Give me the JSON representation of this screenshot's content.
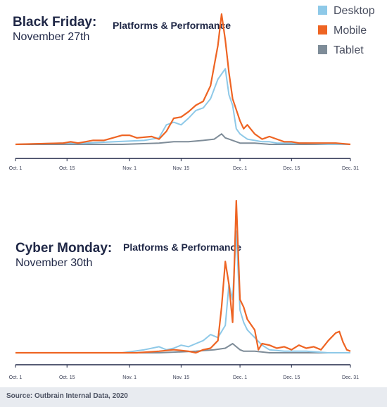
{
  "legend": [
    {
      "label": "Desktop",
      "color": "#8ec9e8"
    },
    {
      "label": "Mobile",
      "color": "#ee6423"
    },
    {
      "label": "Tablet",
      "color": "#7e8c98"
    }
  ],
  "source": "Source: Outbrain Internal Data, 2020",
  "chart_data": [
    {
      "type": "line",
      "title": "Black Friday:",
      "subtitle": "November 27th",
      "note": "Platforms & Performance",
      "x_tick_labels": [
        "Oct. 1",
        "Oct. 15",
        "Nov. 1",
        "Nov. 15",
        "Dec. 1",
        "Dec. 15",
        "Dec. 31"
      ],
      "x_tick_days": [
        1,
        15,
        32,
        46,
        62,
        76,
        92
      ],
      "xlim": [
        1,
        92
      ],
      "ylim": [
        0,
        100
      ],
      "series": [
        {
          "name": "Desktop",
          "color": "#8ec9e8",
          "x": [
            1,
            14,
            20,
            28,
            36,
            40,
            42,
            44,
            46,
            48,
            50,
            52,
            54,
            56,
            58,
            59,
            60,
            61,
            62,
            63,
            64,
            66,
            68,
            70,
            72,
            76,
            80,
            86,
            92
          ],
          "y": [
            0,
            1,
            1,
            2,
            3,
            5,
            15,
            17,
            15,
            20,
            26,
            28,
            35,
            50,
            58,
            38,
            30,
            12,
            8,
            6,
            4,
            3,
            2,
            2,
            1,
            1,
            1,
            0,
            0
          ]
        },
        {
          "name": "Mobile",
          "color": "#ee6423",
          "x": [
            1,
            14,
            16,
            18,
            22,
            25,
            30,
            32,
            34,
            38,
            40,
            42,
            44,
            46,
            48,
            50,
            52,
            54,
            56,
            57,
            58,
            59,
            60,
            62,
            63,
            64,
            66,
            68,
            70,
            72,
            74,
            76,
            78,
            80,
            84,
            88,
            92
          ],
          "y": [
            0,
            1,
            2,
            1,
            3,
            3,
            7,
            7,
            5,
            6,
            4,
            10,
            20,
            21,
            25,
            30,
            33,
            45,
            76,
            100,
            80,
            55,
            35,
            18,
            12,
            15,
            8,
            4,
            6,
            4,
            2,
            2,
            1,
            1,
            1,
            1,
            0
          ]
        },
        {
          "name": "Tablet",
          "color": "#7e8c98",
          "x": [
            1,
            30,
            40,
            44,
            48,
            52,
            55,
            57,
            58,
            59,
            60,
            62,
            66,
            70,
            92
          ],
          "y": [
            0,
            0,
            1,
            2,
            2,
            3,
            4,
            8,
            5,
            4,
            3,
            1,
            1,
            0,
            0
          ]
        }
      ]
    },
    {
      "type": "line",
      "title": "Cyber Monday:",
      "subtitle": "November 30th",
      "note": "Platforms & Performance",
      "x_tick_labels": [
        "Oct. 1",
        "Oct. 15",
        "Nov. 1",
        "Nov. 15",
        "Dec. 1",
        "Dec. 15",
        "Dec. 31"
      ],
      "x_tick_days": [
        1,
        15,
        32,
        46,
        62,
        76,
        92
      ],
      "xlim": [
        1,
        92
      ],
      "ylim": [
        0,
        100
      ],
      "series": [
        {
          "name": "Desktop",
          "color": "#8ec9e8",
          "x": [
            1,
            30,
            36,
            40,
            42,
            44,
            46,
            48,
            50,
            52,
            54,
            56,
            58,
            59,
            60,
            61,
            62,
            63,
            64,
            66,
            68,
            70,
            74,
            80,
            86,
            92
          ],
          "y": [
            0,
            0,
            2,
            4,
            2,
            3,
            5,
            4,
            6,
            8,
            12,
            10,
            18,
            45,
            35,
            80,
            28,
            20,
            15,
            10,
            5,
            2,
            1,
            1,
            0,
            0
          ]
        },
        {
          "name": "Mobile",
          "color": "#ee6423",
          "x": [
            1,
            34,
            40,
            44,
            48,
            50,
            52,
            54,
            56,
            57,
            58,
            59,
            60,
            61,
            62,
            63,
            64,
            66,
            67,
            68,
            70,
            72,
            74,
            76,
            78,
            80,
            82,
            84,
            86,
            88,
            89,
            90,
            91,
            92
          ],
          "y": [
            0,
            0,
            1,
            2,
            1,
            0,
            2,
            3,
            8,
            30,
            60,
            45,
            20,
            100,
            35,
            30,
            22,
            15,
            2,
            6,
            5,
            3,
            4,
            2,
            5,
            3,
            4,
            2,
            8,
            13,
            14,
            7,
            2,
            1
          ]
        },
        {
          "name": "Tablet",
          "color": "#7e8c98",
          "x": [
            1,
            40,
            50,
            55,
            58,
            60,
            61,
            62,
            63,
            64,
            66,
            70,
            92
          ],
          "y": [
            0,
            0,
            1,
            2,
            3,
            6,
            4,
            2,
            1,
            1,
            1,
            0,
            0
          ]
        }
      ]
    }
  ]
}
